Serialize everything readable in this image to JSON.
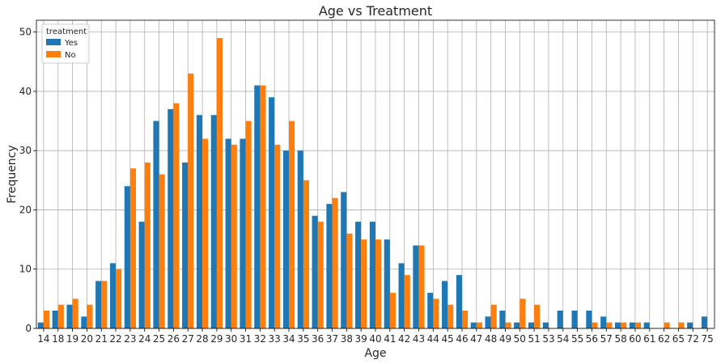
{
  "chart_data": {
    "type": "bar",
    "title": "Age vs Treatment",
    "xlabel": "Age",
    "ylabel": "Frequency",
    "ylim": [
      0,
      52
    ],
    "yticks": [
      0,
      10,
      20,
      30,
      40,
      50
    ],
    "grid": true,
    "legend": {
      "title": "treatment",
      "placement": "top-left"
    },
    "categories": [
      "14",
      "18",
      "19",
      "20",
      "21",
      "22",
      "23",
      "24",
      "25",
      "26",
      "27",
      "28",
      "29",
      "30",
      "31",
      "32",
      "33",
      "34",
      "35",
      "36",
      "37",
      "38",
      "39",
      "40",
      "41",
      "42",
      "43",
      "44",
      "45",
      "46",
      "47",
      "48",
      "49",
      "50",
      "51",
      "53",
      "54",
      "55",
      "56",
      "57",
      "58",
      "60",
      "61",
      "62",
      "65",
      "72",
      "75"
    ],
    "series": [
      {
        "name": "Yes",
        "color": "#1f77b4",
        "values": [
          1,
          3,
          4,
          2,
          8,
          11,
          24,
          18,
          35,
          37,
          28,
          36,
          36,
          32,
          32,
          41,
          39,
          30,
          30,
          19,
          21,
          23,
          18,
          18,
          15,
          11,
          14,
          6,
          8,
          9,
          1,
          2,
          3,
          1,
          1,
          1,
          3,
          3,
          3,
          2,
          1,
          1,
          1,
          0,
          0,
          1,
          2
        ]
      },
      {
        "name": "No",
        "color": "#ff7f0e",
        "values": [
          3,
          4,
          5,
          4,
          8,
          10,
          27,
          28,
          26,
          38,
          43,
          32,
          49,
          31,
          35,
          41,
          31,
          35,
          25,
          18,
          22,
          16,
          15,
          15,
          6,
          9,
          14,
          5,
          4,
          3,
          1,
          4,
          1,
          5,
          4,
          0,
          0,
          0,
          1,
          1,
          1,
          1,
          0,
          1,
          1,
          0,
          0
        ]
      }
    ]
  }
}
